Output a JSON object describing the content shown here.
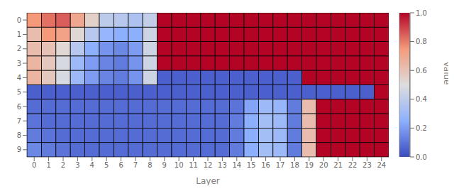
{
  "chart_data": {
    "type": "heatmap",
    "xlabel": "Layer",
    "grid": true,
    "x_categories": [
      "0",
      "1",
      "2",
      "3",
      "4",
      "5",
      "6",
      "7",
      "8",
      "9",
      "10",
      "11",
      "12",
      "13",
      "14",
      "15",
      "16",
      "17",
      "18",
      "19",
      "20",
      "21",
      "22",
      "23",
      "24"
    ],
    "y_categories": [
      "0",
      "1",
      "2",
      "3",
      "4",
      "5",
      "6",
      "7",
      "8",
      "9"
    ],
    "values": [
      [
        0.75,
        0.82,
        0.85,
        0.7,
        0.55,
        0.4,
        0.38,
        0.35,
        0.42,
        1.0,
        1.0,
        1.0,
        1.0,
        1.0,
        1.0,
        1.0,
        1.0,
        1.0,
        1.0,
        1.0,
        1.0,
        1.0,
        1.0,
        1.0,
        1.0
      ],
      [
        0.62,
        0.75,
        0.72,
        0.52,
        0.38,
        0.28,
        0.25,
        0.25,
        0.45,
        1.0,
        1.0,
        1.0,
        1.0,
        1.0,
        1.0,
        1.0,
        1.0,
        1.0,
        1.0,
        1.0,
        1.0,
        1.0,
        1.0,
        1.0,
        1.0
      ],
      [
        0.62,
        0.6,
        0.52,
        0.38,
        0.25,
        0.18,
        0.15,
        0.2,
        0.45,
        1.0,
        1.0,
        1.0,
        1.0,
        1.0,
        1.0,
        1.0,
        1.0,
        1.0,
        1.0,
        1.0,
        1.0,
        1.0,
        1.0,
        1.0,
        1.0
      ],
      [
        0.65,
        0.58,
        0.48,
        0.3,
        0.2,
        0.14,
        0.12,
        0.18,
        0.45,
        1.0,
        1.0,
        1.0,
        1.0,
        1.0,
        1.0,
        1.0,
        1.0,
        1.0,
        1.0,
        1.0,
        1.0,
        1.0,
        1.0,
        1.0,
        1.0
      ],
      [
        0.65,
        0.58,
        0.48,
        0.3,
        0.2,
        0.14,
        0.12,
        0.18,
        0.45,
        0.05,
        0.05,
        0.05,
        0.05,
        0.05,
        0.05,
        0.05,
        0.05,
        0.05,
        0.05,
        1.0,
        1.0,
        1.0,
        1.0,
        1.0,
        1.0
      ],
      [
        0.05,
        0.05,
        0.05,
        0.05,
        0.05,
        0.05,
        0.05,
        0.05,
        0.05,
        0.05,
        0.05,
        0.05,
        0.05,
        0.05,
        0.05,
        0.05,
        0.05,
        0.05,
        0.05,
        0.05,
        0.05,
        0.05,
        0.05,
        0.05,
        1.0
      ],
      [
        0.08,
        0.08,
        0.08,
        0.08,
        0.08,
        0.08,
        0.08,
        0.08,
        0.08,
        0.08,
        0.08,
        0.08,
        0.08,
        0.08,
        0.1,
        0.22,
        0.3,
        0.28,
        0.12,
        0.62,
        1.0,
        1.0,
        1.0,
        1.0,
        1.0
      ],
      [
        0.1,
        0.08,
        0.08,
        0.08,
        0.08,
        0.08,
        0.08,
        0.08,
        0.08,
        0.08,
        0.08,
        0.08,
        0.08,
        0.08,
        0.12,
        0.25,
        0.32,
        0.3,
        0.12,
        0.62,
        1.0,
        1.0,
        1.0,
        1.0,
        1.0
      ],
      [
        0.12,
        0.1,
        0.08,
        0.08,
        0.08,
        0.08,
        0.08,
        0.08,
        0.08,
        0.08,
        0.08,
        0.08,
        0.08,
        0.08,
        0.12,
        0.25,
        0.32,
        0.3,
        0.12,
        0.62,
        1.0,
        1.0,
        1.0,
        1.0,
        1.0
      ],
      [
        0.15,
        0.12,
        0.1,
        0.08,
        0.08,
        0.08,
        0.08,
        0.08,
        0.08,
        0.08,
        0.08,
        0.08,
        0.08,
        0.08,
        0.12,
        0.25,
        0.32,
        0.3,
        0.12,
        0.62,
        1.0,
        1.0,
        1.0,
        1.0,
        1.0
      ]
    ],
    "colorbar": {
      "label": "Value",
      "range": [
        0.0,
        1.0
      ],
      "ticks": [
        {
          "value": 0,
          "label": "0.0"
        },
        0.2,
        0.4,
        0.6,
        0.8,
        {
          "value": 1,
          "label": "1.0"
        }
      ],
      "colors": [
        "#3b4cc0",
        "#8db0fe",
        "#dddddd",
        "#f49a7b",
        "#b40426"
      ]
    }
  }
}
